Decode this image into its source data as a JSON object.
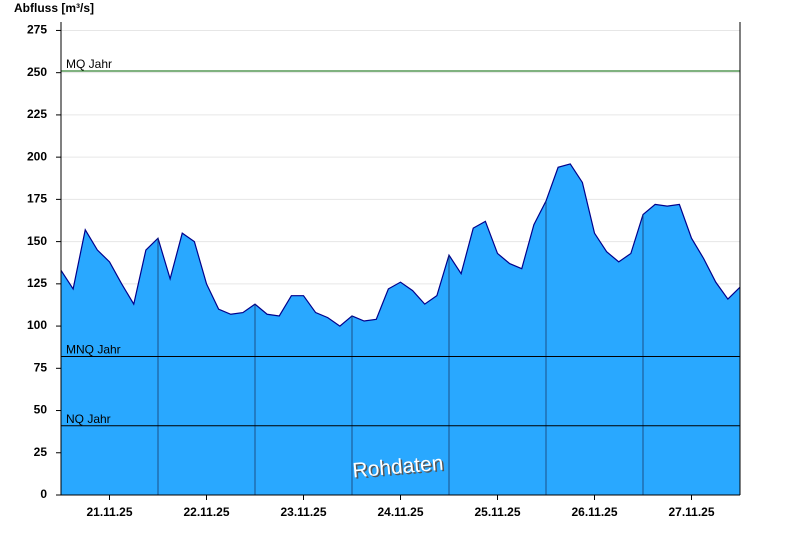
{
  "chart_data": {
    "type": "area",
    "y_label": "Abfluss [m³/s]",
    "annotation": "Rohdaten",
    "x": [
      0,
      3,
      6,
      9,
      12,
      15,
      18,
      21,
      24,
      27,
      30,
      33,
      36,
      39,
      42,
      45,
      48,
      51,
      54,
      57,
      60,
      63,
      66,
      69,
      72,
      75,
      78,
      81,
      84,
      87,
      90,
      93,
      96,
      99,
      102,
      105,
      108,
      111,
      114,
      117,
      120,
      123,
      126,
      129,
      132,
      135,
      138,
      141,
      144,
      147,
      150,
      153,
      156,
      159,
      162,
      165,
      168
    ],
    "values": [
      133,
      122,
      157,
      145,
      138,
      125,
      113,
      145,
      152,
      128,
      155,
      150,
      125,
      110,
      107,
      108,
      113,
      107,
      106,
      118,
      118,
      108,
      105,
      100,
      106,
      103,
      104,
      122,
      126,
      121,
      113,
      118,
      142,
      131,
      158,
      162,
      143,
      137,
      134,
      160,
      174,
      194,
      196,
      185,
      155,
      144,
      138,
      143,
      166,
      172,
      171,
      172,
      152,
      140,
      126,
      116,
      123
    ],
    "color": "#29a8ff",
    "line_color": "#00008b",
    "xlim": [
      0,
      168
    ],
    "xticks": [
      {
        "value": 12,
        "label": "21.11.25"
      },
      {
        "value": 36,
        "label": "22.11.25"
      },
      {
        "value": 60,
        "label": "23.11.25"
      },
      {
        "value": 84,
        "label": "24.11.25"
      },
      {
        "value": 108,
        "label": "25.11.25"
      },
      {
        "value": 132,
        "label": "26.11.25"
      },
      {
        "value": 156,
        "label": "27.11.25"
      }
    ],
    "xgrid": [
      24,
      48,
      72,
      96,
      120,
      144
    ],
    "ylim": [
      0,
      280
    ],
    "yticks": [
      0,
      25,
      50,
      75,
      100,
      125,
      150,
      175,
      200,
      225,
      250,
      275
    ],
    "grid": true,
    "reference_lines": [
      {
        "label": "MQ Jahr",
        "value": 251,
        "color": "#006400"
      },
      {
        "label": "MNQ Jahr",
        "value": 82,
        "color": "#000000"
      },
      {
        "label": "NQ Jahr",
        "value": 41,
        "color": "#000000"
      }
    ]
  }
}
